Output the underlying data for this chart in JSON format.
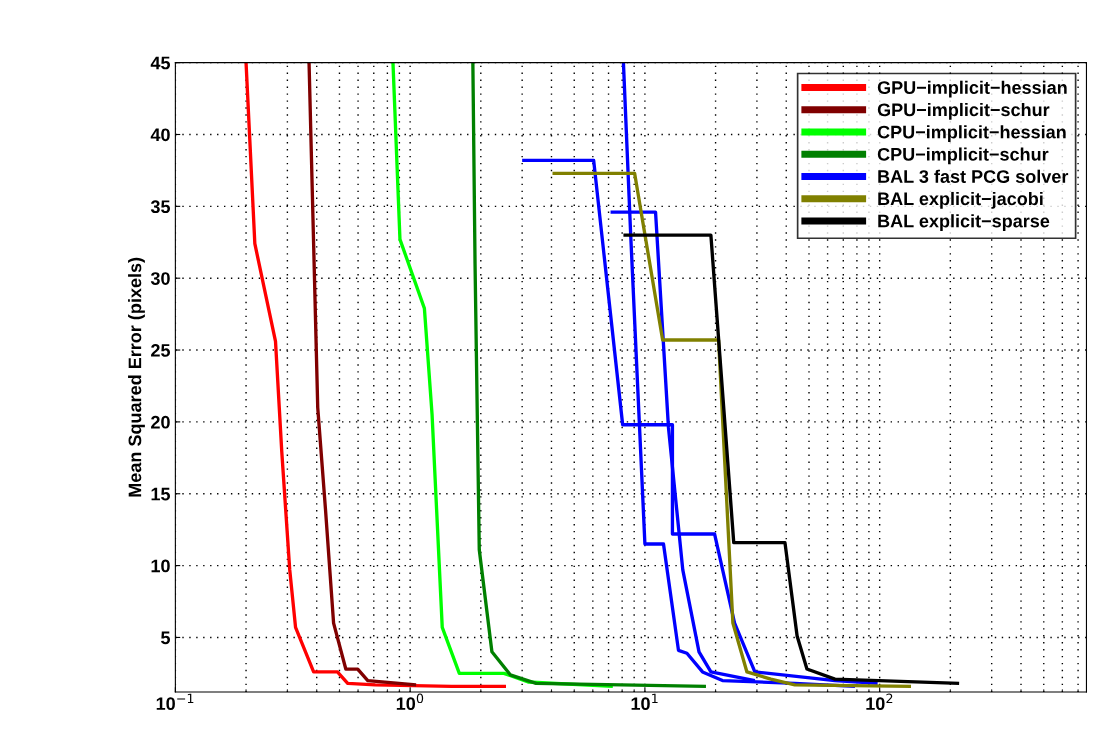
{
  "chart_data": {
    "type": "line",
    "ylabel": "Mean Squared Error (pixels)",
    "log": "x",
    "grid": true,
    "legend": "top right",
    "line_style": "solid",
    "marker": "none",
    "xlim": [
      0.1,
      760
    ],
    "ylim": [
      1.2,
      45
    ],
    "xticks": [
      {
        "value": 0.1,
        "label": "10$^{−1}$"
      },
      {
        "value": 1,
        "label": "10$^{0}$"
      },
      {
        "value": 10,
        "label": "10$^{1}$"
      },
      {
        "value": 100,
        "label": "10$^{2}$"
      }
    ],
    "yticks": [
      5,
      10,
      15,
      20,
      25,
      30,
      35,
      40,
      45
    ],
    "series": [
      {
        "name": "GPU−implicit−hessian",
        "color": "#ff0000",
        "x": [
          0.2,
          0.218,
          0.267,
          0.284,
          0.307,
          0.325,
          0.388,
          0.49,
          0.542,
          0.71,
          1.5,
          2.56
        ],
        "values": [
          45,
          32.4,
          25.6,
          17.9,
          9.7,
          5.7,
          2.6,
          2.6,
          1.8,
          1.7,
          1.6,
          1.6
        ]
      },
      {
        "name": "GPU−implicit−schur",
        "color": "#800000",
        "x": [
          0.371,
          0.388,
          0.404,
          0.436,
          0.472,
          0.532,
          0.598,
          0.66,
          1.06
        ],
        "values": [
          45,
          32.4,
          21,
          13.9,
          6,
          2.8,
          2.8,
          2,
          1.7
        ]
      },
      {
        "name": "CPU−implicit−hessian",
        "color": "#00ff00",
        "x": [
          0.845,
          0.905,
          1.15,
          1.24,
          1.37,
          1.62,
          2.51,
          3.18,
          7.3
        ],
        "values": [
          45,
          32.7,
          27.9,
          20.5,
          5.7,
          2.5,
          2.5,
          1.9,
          1.6
        ]
      },
      {
        "name": "CPU−implicit−schur",
        "color": "#008000",
        "x": [
          1.85,
          1.89,
          1.97,
          2.23,
          2.67,
          3.44,
          18.2
        ],
        "values": [
          45,
          31,
          11.1,
          4,
          2.4,
          1.8,
          1.6
        ]
      },
      {
        "name": "BAL 3 fast PCG solver",
        "color": "#0000ff",
        "x": [
          3.0,
          6.05,
          8.04,
          13.1,
          13.1,
          19.8,
          24.1,
          29.4,
          64.5,
          98
        ],
        "values": [
          38.2,
          38.2,
          19.8,
          19.8,
          12.2,
          12.2,
          6,
          2.6,
          2,
          1.8
        ]
      },
      {
        "color": "#0000ff",
        "x": [
          7.14,
          11.1,
          12.6,
          14.5,
          17,
          19.1,
          29.4
        ],
        "values": [
          34.6,
          34.6,
          19.6,
          9.7,
          4,
          2.6,
          2
        ]
      },
      {
        "color": "#0000ff",
        "x": [
          8.1,
          8.7,
          10,
          12,
          13.9,
          15.1,
          17.6,
          21.4,
          43.5,
          78.5
        ],
        "values": [
          45,
          33,
          11.5,
          11.5,
          4.1,
          3.9,
          2.6,
          2,
          1.8,
          1.6
        ]
      },
      {
        "name": "BAL explicit−jacobi",
        "color": "#808000",
        "x": [
          4.04,
          9.04,
          11.9,
          20.6,
          23.7,
          27.2,
          34.4,
          43.5,
          136
        ],
        "values": [
          37.3,
          37.3,
          25.7,
          25.7,
          6,
          2.6,
          2.1,
          1.7,
          1.6
        ]
      },
      {
        "name": "BAL explicit−sparse",
        "color": "#000000",
        "x": [
          8.1,
          19.1,
          23.9,
          39.5,
          44.5,
          49,
          64.5,
          218
        ],
        "values": [
          33,
          33,
          11.6,
          11.6,
          5.1,
          2.8,
          2.1,
          1.8
        ]
      }
    ]
  }
}
